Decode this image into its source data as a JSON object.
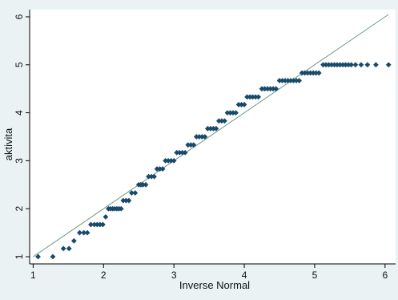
{
  "chart_data": {
    "type": "scatter",
    "title": "",
    "xlabel": "Inverse Normal",
    "ylabel": "aktivita",
    "xlim": [
      0.95,
      6.15
    ],
    "ylim": [
      0.85,
      6.15
    ],
    "xticks": [
      "1",
      "2",
      "3",
      "4",
      "5",
      "6"
    ],
    "yticks": [
      "1",
      "2",
      "3",
      "4",
      "5",
      "6"
    ],
    "grid": false,
    "legend": "none",
    "colors": {
      "background": "#eaf2f3",
      "plot_area": "#ffffff",
      "marker": "#1a4a6b",
      "reference_line": "#6f9a86",
      "axis": "#000000"
    },
    "reference_line": {
      "from": [
        1.0,
        1.0
      ],
      "to": [
        6.05,
        6.05
      ]
    },
    "series": [
      {
        "marker": "diamond",
        "points": [
          [
            1.07,
            1.0
          ],
          [
            1.28,
            1.0
          ],
          [
            1.43,
            1.17
          ],
          [
            1.51,
            1.17
          ],
          [
            1.58,
            1.33
          ],
          [
            1.66,
            1.5
          ],
          [
            1.72,
            1.5
          ],
          [
            1.77,
            1.5
          ],
          [
            1.82,
            1.67
          ],
          [
            1.87,
            1.67
          ],
          [
            1.91,
            1.67
          ],
          [
            1.95,
            1.67
          ],
          [
            1.99,
            1.67
          ],
          [
            2.03,
            1.83
          ],
          [
            2.07,
            2.0
          ],
          [
            2.1,
            2.0
          ],
          [
            2.13,
            2.0
          ],
          [
            2.16,
            2.0
          ],
          [
            2.19,
            2.0
          ],
          [
            2.22,
            2.0
          ],
          [
            2.25,
            2.0
          ],
          [
            2.28,
            2.17
          ],
          [
            2.32,
            2.17
          ],
          [
            2.36,
            2.17
          ],
          [
            2.4,
            2.33
          ],
          [
            2.45,
            2.33
          ],
          [
            2.5,
            2.5
          ],
          [
            2.53,
            2.5
          ],
          [
            2.56,
            2.5
          ],
          [
            2.6,
            2.5
          ],
          [
            2.64,
            2.67
          ],
          [
            2.68,
            2.67
          ],
          [
            2.72,
            2.67
          ],
          [
            2.76,
            2.83
          ],
          [
            2.8,
            2.83
          ],
          [
            2.84,
            2.83
          ],
          [
            2.88,
            3.0
          ],
          [
            2.92,
            3.0
          ],
          [
            2.96,
            3.0
          ],
          [
            3.0,
            3.0
          ],
          [
            3.04,
            3.17
          ],
          [
            3.08,
            3.17
          ],
          [
            3.12,
            3.17
          ],
          [
            3.16,
            3.17
          ],
          [
            3.2,
            3.33
          ],
          [
            3.24,
            3.33
          ],
          [
            3.28,
            3.33
          ],
          [
            3.32,
            3.5
          ],
          [
            3.36,
            3.5
          ],
          [
            3.4,
            3.5
          ],
          [
            3.44,
            3.5
          ],
          [
            3.48,
            3.67
          ],
          [
            3.52,
            3.67
          ],
          [
            3.56,
            3.67
          ],
          [
            3.6,
            3.67
          ],
          [
            3.64,
            3.83
          ],
          [
            3.68,
            3.83
          ],
          [
            3.72,
            3.83
          ],
          [
            3.76,
            4.0
          ],
          [
            3.8,
            4.0
          ],
          [
            3.84,
            4.0
          ],
          [
            3.88,
            4.0
          ],
          [
            3.92,
            4.17
          ],
          [
            3.96,
            4.17
          ],
          [
            4.0,
            4.17
          ],
          [
            4.04,
            4.33
          ],
          [
            4.08,
            4.33
          ],
          [
            4.12,
            4.33
          ],
          [
            4.16,
            4.33
          ],
          [
            4.2,
            4.33
          ],
          [
            4.25,
            4.5
          ],
          [
            4.29,
            4.5
          ],
          [
            4.33,
            4.5
          ],
          [
            4.37,
            4.5
          ],
          [
            4.41,
            4.5
          ],
          [
            4.45,
            4.5
          ],
          [
            4.5,
            4.67
          ],
          [
            4.54,
            4.67
          ],
          [
            4.58,
            4.67
          ],
          [
            4.62,
            4.67
          ],
          [
            4.66,
            4.67
          ],
          [
            4.7,
            4.67
          ],
          [
            4.74,
            4.67
          ],
          [
            4.78,
            4.67
          ],
          [
            4.82,
            4.83
          ],
          [
            4.86,
            4.83
          ],
          [
            4.9,
            4.83
          ],
          [
            4.94,
            4.83
          ],
          [
            4.98,
            4.83
          ],
          [
            5.02,
            4.83
          ],
          [
            5.06,
            4.83
          ],
          [
            5.12,
            5.0
          ],
          [
            5.16,
            5.0
          ],
          [
            5.2,
            5.0
          ],
          [
            5.24,
            5.0
          ],
          [
            5.28,
            5.0
          ],
          [
            5.32,
            5.0
          ],
          [
            5.36,
            5.0
          ],
          [
            5.4,
            5.0
          ],
          [
            5.44,
            5.0
          ],
          [
            5.48,
            5.0
          ],
          [
            5.52,
            5.0
          ],
          [
            5.58,
            5.0
          ],
          [
            5.66,
            5.0
          ],
          [
            5.75,
            5.0
          ],
          [
            5.87,
            5.0
          ],
          [
            6.05,
            5.0
          ]
        ]
      }
    ]
  }
}
